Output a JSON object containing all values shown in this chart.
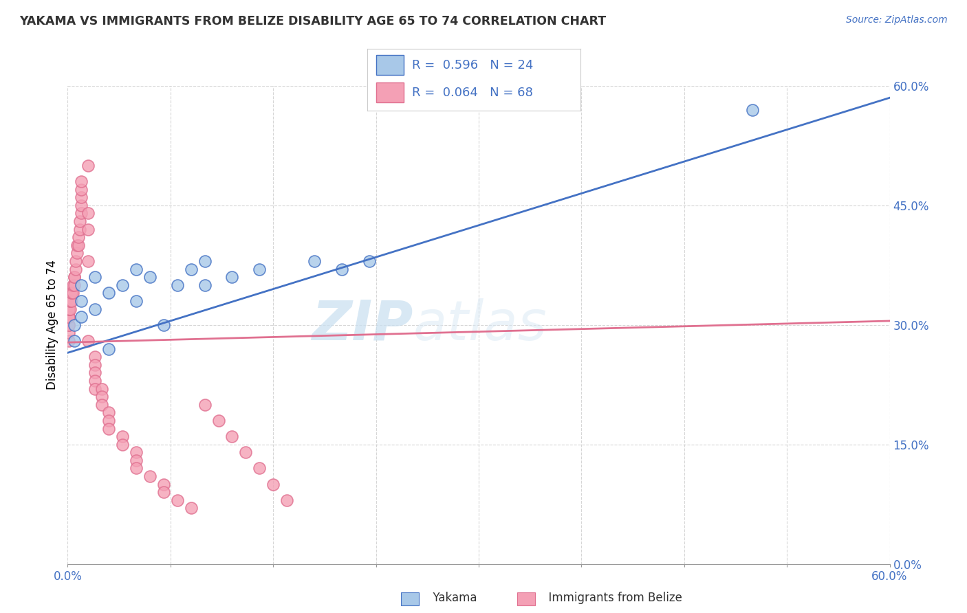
{
  "title": "YAKAMA VS IMMIGRANTS FROM BELIZE DISABILITY AGE 65 TO 74 CORRELATION CHART",
  "source": "Source: ZipAtlas.com",
  "ylabel": "Disability Age 65 to 74",
  "xlim": [
    0.0,
    0.6
  ],
  "ylim": [
    0.0,
    0.6
  ],
  "ytick_positions": [
    0.0,
    0.15,
    0.3,
    0.45,
    0.6
  ],
  "xtick_positions": [
    0.0,
    0.075,
    0.15,
    0.225,
    0.3,
    0.375,
    0.45,
    0.525,
    0.6
  ],
  "watermark_zip": "ZIP",
  "watermark_atlas": "atlas",
  "legend_r1": "R =  0.596",
  "legend_n1": "N = 24",
  "legend_r2": "R =  0.064",
  "legend_n2": "N = 68",
  "color_blue": "#a8c8e8",
  "color_pink": "#f4a0b5",
  "line_blue": "#4472c4",
  "line_pink": "#e07090",
  "axis_color": "#4472c4",
  "background_color": "#ffffff",
  "grid_color": "#cccccc",
  "yakama_x": [
    0.005,
    0.005,
    0.01,
    0.01,
    0.01,
    0.02,
    0.02,
    0.03,
    0.04,
    0.05,
    0.05,
    0.06,
    0.08,
    0.09,
    0.1,
    0.1,
    0.12,
    0.14,
    0.18,
    0.2,
    0.22,
    0.03,
    0.07,
    0.5
  ],
  "yakama_y": [
    0.28,
    0.3,
    0.31,
    0.33,
    0.35,
    0.32,
    0.36,
    0.34,
    0.35,
    0.33,
    0.37,
    0.36,
    0.35,
    0.37,
    0.35,
    0.38,
    0.36,
    0.37,
    0.38,
    0.37,
    0.38,
    0.27,
    0.3,
    0.57
  ],
  "belize_x": [
    0.001,
    0.001,
    0.001,
    0.001,
    0.001,
    0.001,
    0.001,
    0.001,
    0.001,
    0.001,
    0.001,
    0.001,
    0.001,
    0.001,
    0.001,
    0.001,
    0.001,
    0.001,
    0.001,
    0.001,
    0.001,
    0.001,
    0.001,
    0.001,
    0.001,
    0.001,
    0.001,
    0.001,
    0.001,
    0.001,
    0.001,
    0.001,
    0.001,
    0.001,
    0.001,
    0.001,
    0.001,
    0.001,
    0.001,
    0.001,
    0.001,
    0.001,
    0.001,
    0.001,
    0.001,
    0.001,
    0.001,
    0.001,
    0.001,
    0.001,
    0.001,
    0.001,
    0.001,
    0.001,
    0.001,
    0.001,
    0.001,
    0.001,
    0.001,
    0.001,
    0.001,
    0.001,
    0.001,
    0.001,
    0.001,
    0.001,
    0.001,
    0.001
  ],
  "belize_y": [
    0.28,
    0.29,
    0.3,
    0.3,
    0.31,
    0.31,
    0.31,
    0.32,
    0.32,
    0.32,
    0.32,
    0.33,
    0.33,
    0.33,
    0.33,
    0.34,
    0.34,
    0.34,
    0.35,
    0.35,
    0.36,
    0.36,
    0.37,
    0.38,
    0.39,
    0.4,
    0.4,
    0.41,
    0.42,
    0.43,
    0.44,
    0.45,
    0.46,
    0.47,
    0.48,
    0.5,
    0.44,
    0.42,
    0.38,
    0.28,
    0.26,
    0.25,
    0.24,
    0.23,
    0.22,
    0.22,
    0.21,
    0.2,
    0.19,
    0.18,
    0.17,
    0.16,
    0.15,
    0.14,
    0.13,
    0.12,
    0.11,
    0.1,
    0.09,
    0.08,
    0.07,
    0.2,
    0.18,
    0.16,
    0.14,
    0.12,
    0.1,
    0.08
  ],
  "belize_x_spread": [
    0.001,
    0.001,
    0.001,
    0.001,
    0.001,
    0.001,
    0.001,
    0.001,
    0.001,
    0.001,
    0.002,
    0.002,
    0.002,
    0.002,
    0.003,
    0.003,
    0.003,
    0.004,
    0.004,
    0.005,
    0.005,
    0.005,
    0.006,
    0.006,
    0.007,
    0.007,
    0.008,
    0.008,
    0.009,
    0.009,
    0.01,
    0.01,
    0.01,
    0.01,
    0.01,
    0.015,
    0.015,
    0.015,
    0.015,
    0.015,
    0.02,
    0.02,
    0.02,
    0.02,
    0.02,
    0.025,
    0.025,
    0.025,
    0.03,
    0.03,
    0.03,
    0.04,
    0.04,
    0.05,
    0.05,
    0.05,
    0.06,
    0.07,
    0.07,
    0.08,
    0.09,
    0.1,
    0.11,
    0.12,
    0.13,
    0.14,
    0.15,
    0.16
  ]
}
